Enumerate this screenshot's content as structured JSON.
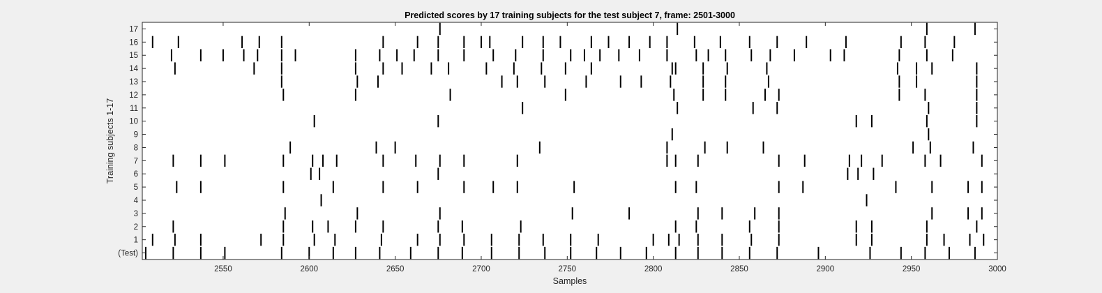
{
  "chart_data": {
    "type": "raster",
    "title": "Predicted scores by 17 training subjects for the test subject 7, frame: 2501-3000",
    "xlabel": "Samples",
    "ylabel": "Training subjects 1-17",
    "xlim": [
      2503,
      3000
    ],
    "xticks": [
      2550,
      2600,
      2650,
      2700,
      2750,
      2800,
      2850,
      2900,
      2950,
      3000
    ],
    "row_labels": [
      "(Test)",
      "1",
      "2",
      "3",
      "4",
      "5",
      "6",
      "7",
      "8",
      "9",
      "10",
      "11",
      "12",
      "13",
      "14",
      "15",
      "16",
      "17"
    ],
    "grid": false,
    "colors": {
      "background": "#f0f0f0",
      "plot_area": "#ffffff",
      "marks": "#000000"
    },
    "series": [
      {
        "name": "(Test)",
        "x": [
          2505,
          2521,
          2537,
          2551,
          2584,
          2600,
          2614,
          2627,
          2641,
          2659,
          2675,
          2689,
          2706,
          2722,
          2737,
          2752,
          2767,
          2781,
          2796,
          2813,
          2826,
          2840,
          2856,
          2872,
          2896,
          2926,
          2944,
          2958,
          2972,
          2987
        ]
      },
      {
        "name": "1",
        "x": [
          2509,
          2522,
          2537,
          2572,
          2585,
          2603,
          2615,
          2642,
          2663,
          2676,
          2690,
          2706,
          2722,
          2736,
          2752,
          2768,
          2800,
          2809,
          2815,
          2826,
          2840,
          2857,
          2873,
          2918,
          2927,
          2959,
          2969,
          2984,
          2992
        ]
      },
      {
        "name": "2",
        "x": [
          2521,
          2585,
          2602,
          2611,
          2627,
          2643,
          2675,
          2689,
          2723,
          2813,
          2825,
          2856,
          2873,
          2918,
          2927,
          2959,
          2988
        ]
      },
      {
        "name": "3",
        "x": [
          2586,
          2628,
          2676,
          2753,
          2786,
          2826,
          2840,
          2859,
          2873,
          2962,
          2983,
          2991
        ]
      },
      {
        "name": "4",
        "x": [
          2607,
          2924
        ]
      },
      {
        "name": "5",
        "x": [
          2523,
          2537,
          2585,
          2614,
          2643,
          2663,
          2690,
          2707,
          2721,
          2754,
          2813,
          2825,
          2873,
          2887,
          2941,
          2962,
          2983,
          2991
        ]
      },
      {
        "name": "6",
        "x": [
          2601,
          2606,
          2675,
          2913,
          2919,
          2928
        ]
      },
      {
        "name": "7",
        "x": [
          2521,
          2537,
          2551,
          2585,
          2602,
          2608,
          2616,
          2643,
          2662,
          2676,
          2690,
          2721,
          2808,
          2813,
          2826,
          2873,
          2888,
          2914,
          2921,
          2933,
          2958,
          2967,
          2991
        ]
      },
      {
        "name": "8",
        "x": [
          2589,
          2639,
          2650,
          2734,
          2808,
          2830,
          2843,
          2864,
          2951,
          2961,
          2986
        ]
      },
      {
        "name": "9",
        "x": [
          2811,
          2960
        ]
      },
      {
        "name": "10",
        "x": [
          2603,
          2675,
          2918,
          2927,
          2959,
          2988
        ]
      },
      {
        "name": "11",
        "x": [
          2724,
          2814,
          2858,
          2872,
          2960,
          2988
        ]
      },
      {
        "name": "12",
        "x": [
          2585,
          2627,
          2682,
          2749,
          2812,
          2829,
          2842,
          2865,
          2873,
          2943,
          2958,
          2988
        ]
      },
      {
        "name": "13",
        "x": [
          2584,
          2628,
          2640,
          2712,
          2721,
          2737,
          2761,
          2781,
          2793,
          2810,
          2829,
          2842,
          2867,
          2943,
          2953,
          2988
        ]
      },
      {
        "name": "14",
        "x": [
          2522,
          2568,
          2584,
          2627,
          2643,
          2654,
          2671,
          2681,
          2703,
          2719,
          2735,
          2749,
          2764,
          2811,
          2813,
          2829,
          2843,
          2866,
          2942,
          2953,
          2962,
          2988
        ]
      },
      {
        "name": "15",
        "x": [
          2520,
          2537,
          2550,
          2562,
          2570,
          2584,
          2592,
          2627,
          2641,
          2651,
          2661,
          2675,
          2690,
          2707,
          2720,
          2736,
          2752,
          2760,
          2769,
          2780,
          2792,
          2808,
          2825,
          2832,
          2842,
          2857,
          2868,
          2882,
          2903,
          2911,
          2943,
          2959,
          2974
        ]
      },
      {
        "name": "16",
        "x": [
          2509,
          2524,
          2561,
          2571,
          2584,
          2643,
          2663,
          2675,
          2690,
          2700,
          2705,
          2724,
          2736,
          2746,
          2764,
          2774,
          2786,
          2798,
          2808,
          2824,
          2839,
          2856,
          2872,
          2889,
          2912,
          2944,
          2958,
          2975
        ]
      },
      {
        "name": "17",
        "x": [
          2676,
          2814,
          2959,
          2987
        ]
      }
    ]
  }
}
